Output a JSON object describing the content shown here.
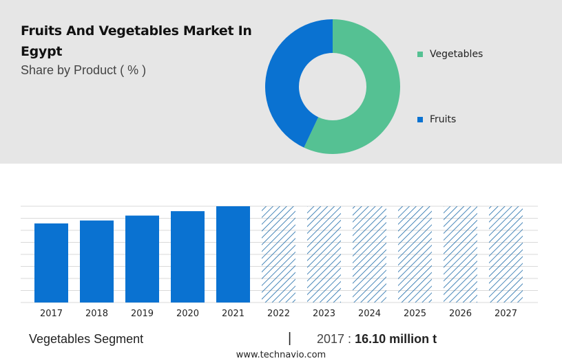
{
  "header": {
    "title": "Fruits And Vegetables Market In Egypt",
    "subtitle": "Share by Product ( % )"
  },
  "chart_data": [
    {
      "type": "pie",
      "style": "donut",
      "title": "Share by Product ( % )",
      "series": [
        {
          "name": "Vegetables",
          "value": 57,
          "color": "#55c193"
        },
        {
          "name": "Fruits",
          "value": 43,
          "color": "#0a72d1"
        }
      ],
      "legend": "right"
    },
    {
      "type": "bar",
      "categories": [
        "2017",
        "2018",
        "2019",
        "2020",
        "2021",
        "2022",
        "2023",
        "2024",
        "2025",
        "2026",
        "2027"
      ],
      "values": [
        16.1,
        16.7,
        17.7,
        18.6,
        19.6,
        19.6,
        19.6,
        19.6,
        19.6,
        19.6,
        19.6
      ],
      "forecast_from_index": 5,
      "ylim": [
        0,
        19.6
      ],
      "grid": true,
      "color": "#0a72d1",
      "forecast_color": "#1b6aa8",
      "xlabel": "",
      "ylabel": ""
    }
  ],
  "footer": {
    "segment": "Vegetables Segment",
    "separator": "|",
    "stat_year": "2017 :",
    "stat_value": "16.10 million t",
    "source": "www.technavio.com"
  }
}
